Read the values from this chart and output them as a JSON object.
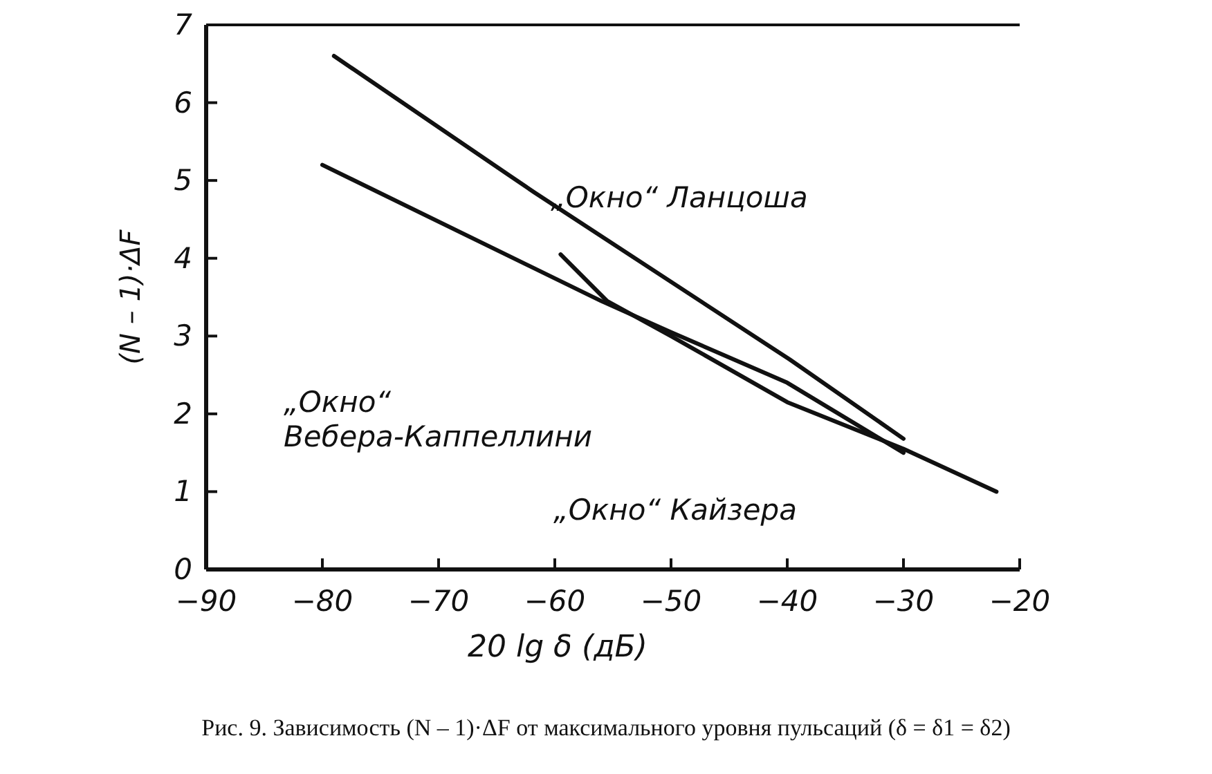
{
  "chart_data": {
    "type": "line",
    "xlabel": "20 lg δ (дБ)",
    "ylabel": "(N – 1)·ΔF",
    "xlim": [
      -90,
      -20
    ],
    "xticks": [
      -90,
      -80,
      -70,
      -60,
      -50,
      -40,
      -30,
      -20
    ],
    "ylim": [
      0,
      7
    ],
    "yticks": [
      0,
      1,
      2,
      3,
      4,
      5,
      6,
      7
    ],
    "grid": false,
    "marker": "none",
    "line_style": "solid",
    "series": [
      {
        "color": "#111111",
        "x": [
          -79,
          -61.8,
          -39.8,
          -30
        ],
        "values": [
          6.6,
          4.85,
          2.7,
          1.68
        ]
      },
      {
        "color": "#111111",
        "x": [
          -80,
          -56,
          -50,
          -40,
          -30
        ],
        "values": [
          5.2,
          3.45,
          3.05,
          2.4,
          1.5
        ]
      },
      {
        "color": "#111111",
        "x": [
          -59.5,
          -55.5,
          -50,
          -40,
          -30,
          -22
        ],
        "values": [
          4.05,
          3.45,
          3.0,
          2.15,
          1.55,
          1.0
        ]
      }
    ],
    "annotations": [
      "„Окно“ Ланцоша",
      "„Окно“\nВебера-Каппеллини",
      "„Окно“ Кайзера",
      "Рис. 9. Зависимость (N – 1)·ΔF от максимального уровня пульсаций (δ = δ1 = δ2)"
    ]
  }
}
